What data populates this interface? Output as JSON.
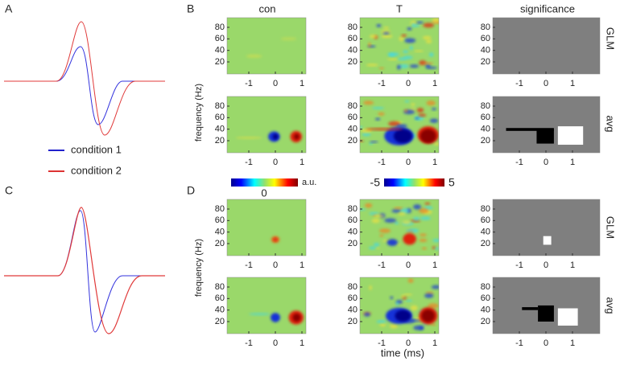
{
  "panel_labels": [
    "A",
    "B",
    "C",
    "D"
  ],
  "legend": [
    "condition 1",
    "condition 2"
  ],
  "column_titles": [
    "con",
    "T",
    "significance"
  ],
  "row_labels": [
    "GLM",
    "avg",
    "GLM",
    "avg"
  ],
  "y_axis_label": "frequency (Hz)",
  "x_axis_label": "time (ms)",
  "yticks": [
    80,
    60,
    40,
    20
  ],
  "xticks": [
    -1,
    0,
    1
  ],
  "colorbar_con": {
    "ticks": [
      0
    ],
    "unit": "a.u."
  },
  "colorbar_T": {
    "ticks": [
      -5,
      5
    ]
  }
}
